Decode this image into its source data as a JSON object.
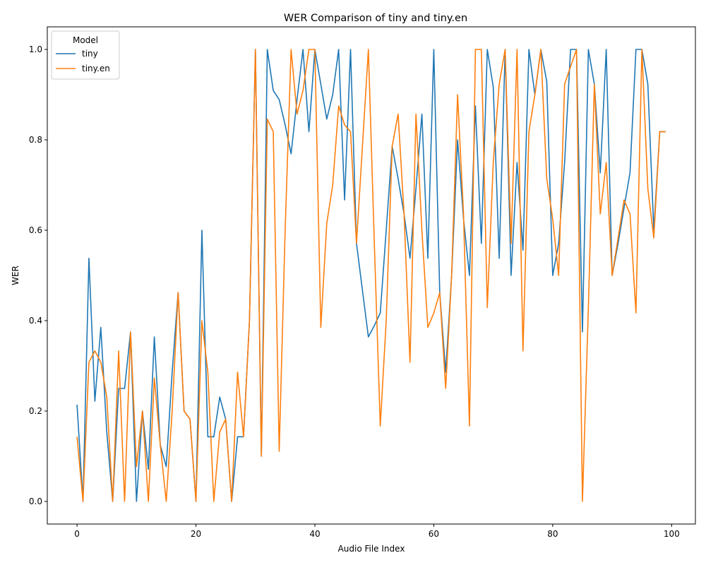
{
  "chart_data": {
    "type": "line",
    "title": "WER Comparison of tiny and tiny.en",
    "xlabel": "Audio File Index",
    "ylabel": "WER",
    "xlim": [
      -5,
      104
    ],
    "ylim": [
      -0.05,
      1.05
    ],
    "xticks": [
      0,
      20,
      40,
      60,
      80,
      100
    ],
    "yticks": [
      0.0,
      0.2,
      0.4,
      0.6,
      0.8,
      1.0
    ],
    "ytick_labels": [
      "0.0",
      "0.2",
      "0.4",
      "0.6",
      "0.8",
      "1.0"
    ],
    "grid": false,
    "legend": {
      "title": "Model",
      "placement": "top-left"
    },
    "series": [
      {
        "name": "tiny",
        "color": "#1f77b4",
        "x": [
          0,
          1,
          2,
          3,
          4,
          5,
          6,
          7,
          8,
          9,
          10,
          11,
          12,
          13,
          14,
          15,
          16,
          17,
          18,
          19,
          20,
          21,
          22,
          23,
          24,
          25,
          26,
          27,
          28,
          29,
          30,
          31,
          32,
          33,
          34,
          35,
          36,
          37,
          38,
          39,
          40,
          41,
          42,
          43,
          44,
          45,
          46,
          47,
          48,
          49,
          50,
          51,
          52,
          53,
          54,
          55,
          56,
          57,
          58,
          59,
          60,
          61,
          62,
          63,
          64,
          65,
          66,
          67,
          68,
          69,
          70,
          71,
          72,
          73,
          74,
          75,
          76,
          77,
          78,
          79,
          80,
          81,
          82,
          83,
          84,
          85,
          86,
          87,
          88,
          89,
          90,
          91,
          92,
          93,
          94,
          95,
          96,
          97,
          98,
          99
        ],
        "values": [
          0.214,
          0.0,
          0.538,
          0.222,
          0.385,
          0.154,
          0.0,
          0.25,
          0.25,
          0.375,
          0.0,
          0.2,
          0.071,
          0.364,
          0.125,
          0.077,
          0.286,
          0.462,
          0.2,
          0.182,
          0.0,
          0.6,
          0.143,
          0.143,
          0.231,
          0.182,
          0.0,
          0.143,
          0.143,
          0.4,
          1.0,
          0.1,
          1.0,
          0.909,
          0.889,
          0.833,
          0.769,
          0.889,
          1.0,
          0.818,
          1.0,
          0.923,
          0.846,
          0.9,
          1.0,
          0.667,
          1.0,
          0.571,
          0.467,
          0.364,
          0.389,
          0.417,
          0.6,
          0.786,
          0.714,
          0.636,
          0.538,
          0.692,
          0.857,
          0.538,
          1.0,
          0.462,
          0.286,
          0.5,
          0.8,
          0.625,
          0.5,
          0.875,
          0.571,
          1.0,
          0.917,
          0.538,
          1.0,
          0.5,
          0.75,
          0.556,
          1.0,
          0.9,
          1.0,
          0.929,
          0.5,
          0.571,
          0.75,
          1.0,
          1.0,
          0.375,
          1.0,
          0.923,
          0.727,
          1.0,
          0.5,
          0.571,
          0.65,
          0.727,
          1.0,
          1.0,
          0.923,
          0.6,
          0.818,
          0.818
        ]
      },
      {
        "name": "tiny.en",
        "color": "#ff7f0e",
        "x": [
          0,
          1,
          2,
          3,
          4,
          5,
          6,
          7,
          8,
          9,
          10,
          11,
          12,
          13,
          14,
          15,
          16,
          17,
          18,
          19,
          20,
          21,
          22,
          23,
          24,
          25,
          26,
          27,
          28,
          29,
          30,
          31,
          32,
          33,
          34,
          35,
          36,
          37,
          38,
          39,
          40,
          41,
          42,
          43,
          44,
          45,
          46,
          47,
          48,
          49,
          50,
          51,
          52,
          53,
          54,
          55,
          56,
          57,
          58,
          59,
          60,
          61,
          62,
          63,
          64,
          65,
          66,
          67,
          68,
          69,
          70,
          71,
          72,
          73,
          74,
          75,
          76,
          77,
          78,
          79,
          80,
          81,
          82,
          83,
          84,
          85,
          86,
          87,
          88,
          89,
          90,
          91,
          92,
          93,
          94,
          95,
          96,
          97,
          98,
          99
        ],
        "values": [
          0.143,
          0.0,
          0.308,
          0.333,
          0.308,
          0.231,
          0.0,
          0.333,
          0.0,
          0.375,
          0.077,
          0.2,
          0.0,
          0.273,
          0.125,
          0.0,
          0.2,
          0.462,
          0.2,
          0.182,
          0.0,
          0.4,
          0.286,
          0.0,
          0.154,
          0.182,
          0.0,
          0.286,
          0.143,
          0.4,
          1.0,
          0.1,
          0.846,
          0.818,
          0.111,
          0.6,
          1.0,
          0.857,
          0.909,
          1.0,
          1.0,
          0.385,
          0.615,
          0.7,
          0.875,
          0.833,
          0.818,
          0.571,
          0.786,
          1.0,
          0.571,
          0.167,
          0.4,
          0.786,
          0.857,
          0.636,
          0.308,
          0.857,
          0.6,
          0.385,
          0.417,
          0.462,
          0.25,
          0.5,
          0.9,
          0.636,
          0.167,
          1.0,
          1.0,
          0.429,
          0.75,
          0.923,
          1.0,
          0.571,
          1.0,
          0.333,
          0.818,
          0.9,
          1.0,
          0.714,
          0.625,
          0.5,
          0.923,
          0.962,
          1.0,
          0.0,
          0.429,
          0.923,
          0.636,
          0.75,
          0.5,
          0.583,
          0.667,
          0.636,
          0.417,
          1.0,
          0.692,
          0.583,
          0.818,
          0.818
        ]
      }
    ]
  }
}
